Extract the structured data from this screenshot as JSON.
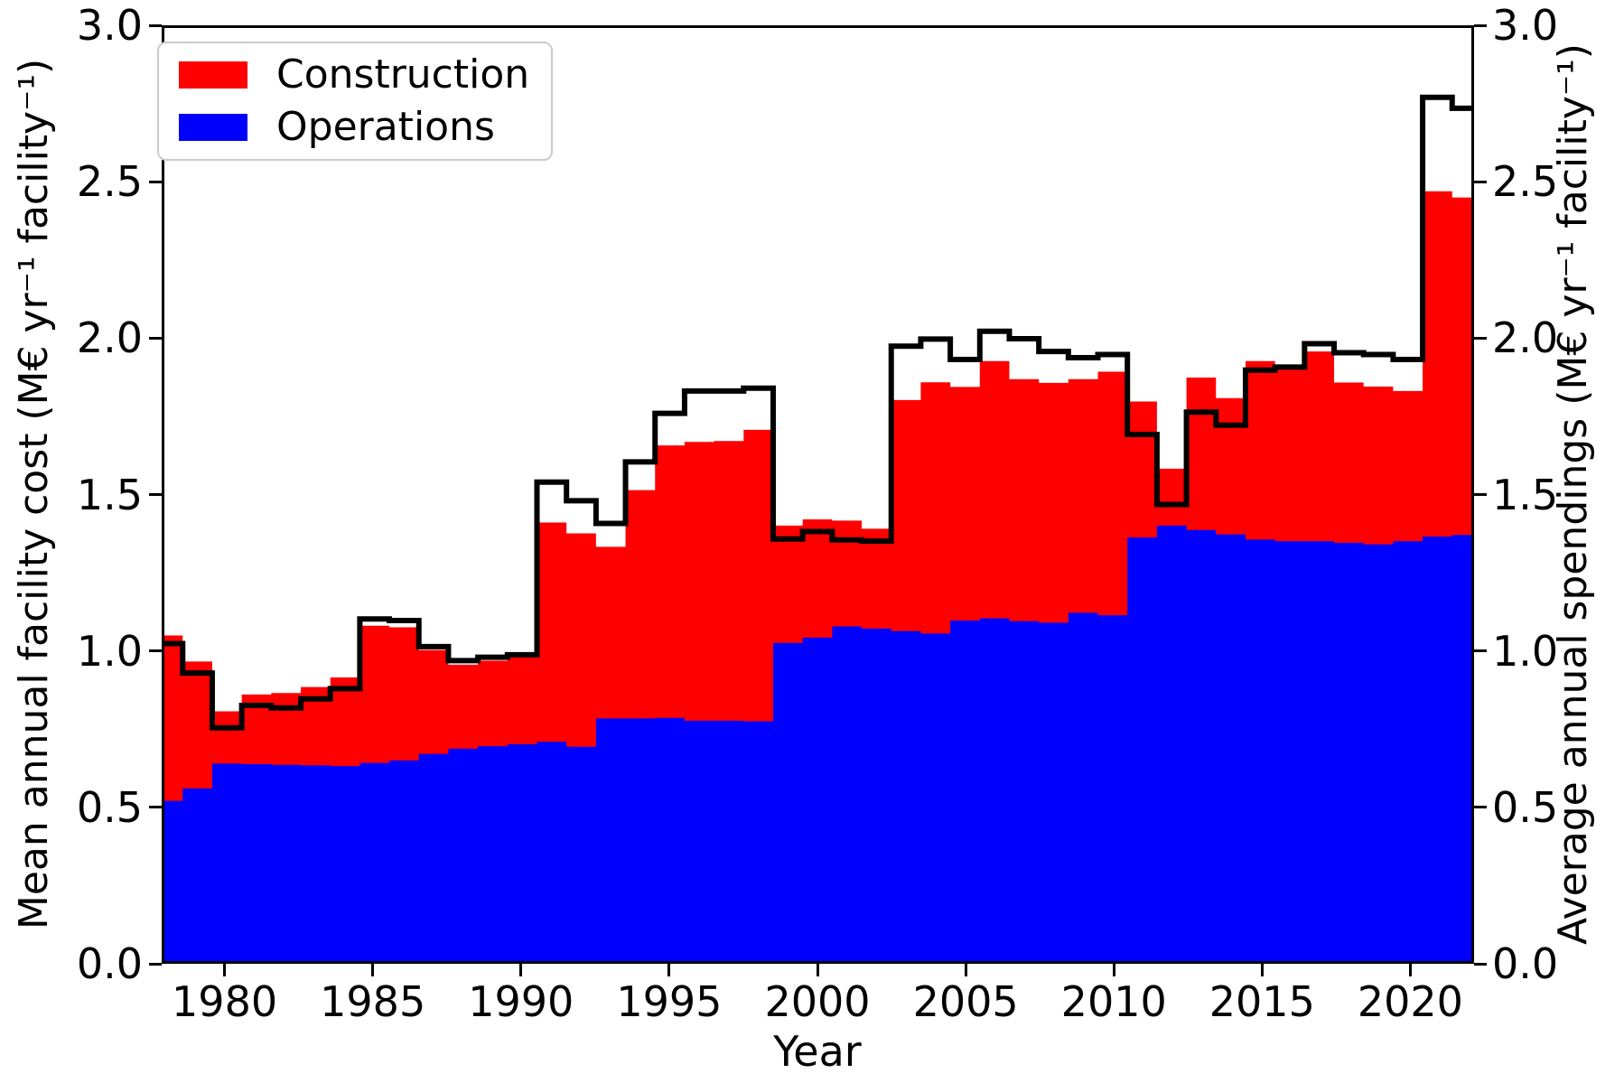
{
  "figure": {
    "background": "#ffffff",
    "legend": {
      "items": [
        {
          "label": "Construction",
          "color": "#ff0000"
        },
        {
          "label": "Operations",
          "color": "#0000ff"
        }
      ]
    },
    "axes": {
      "left_label": "Mean annual facility cost (M€ yr⁻¹ facility⁻¹)",
      "right_label": "Average annual spendings (M€ yr⁻¹ facility⁻¹)",
      "x_label": "Year",
      "y_tick_labels": [
        "0.0",
        "0.5",
        "1.0",
        "1.5",
        "2.0",
        "2.5",
        "3.0"
      ],
      "x_tick_labels": [
        "1980",
        "1985",
        "1990",
        "1995",
        "2000",
        "2005",
        "2010",
        "2015",
        "2020"
      ]
    }
  },
  "chart_data": {
    "type": "area",
    "subtype": "stacked-step-area-with-step-line",
    "title": "",
    "xlabel": "Year",
    "ylabel_left": "Mean annual facility cost (M€ yr⁻¹ facility⁻¹)",
    "ylabel_right": "Average annual spendings (M€ yr⁻¹ facility⁻¹)",
    "xlim": [
      1977.88,
      2022.15
    ],
    "ylim": [
      0.0,
      3.0
    ],
    "x_ticks": [
      1980,
      1985,
      1990,
      1995,
      2000,
      2005,
      2010,
      2015,
      2020
    ],
    "y_ticks": [
      0.0,
      0.5,
      1.0,
      1.5,
      2.0,
      2.5,
      3.0
    ],
    "grid": false,
    "legend_position": "upper left",
    "bar_alignment": "center",
    "x": [
      1978,
      1979,
      1980,
      1981,
      1982,
      1983,
      1984,
      1985,
      1986,
      1987,
      1988,
      1989,
      1990,
      1991,
      1992,
      1993,
      1994,
      1995,
      1996,
      1997,
      1998,
      1999,
      2000,
      2001,
      2002,
      2003,
      2004,
      2005,
      2006,
      2007,
      2008,
      2009,
      2010,
      2011,
      2012,
      2013,
      2014,
      2015,
      2016,
      2017,
      2018,
      2019,
      2020,
      2021,
      2022
    ],
    "series": [
      {
        "name": "Operations",
        "role": "stacked-area-bottom",
        "color": "#0000ff",
        "values": [
          0.515,
          0.555,
          0.635,
          0.633,
          0.631,
          0.629,
          0.627,
          0.637,
          0.645,
          0.666,
          0.683,
          0.691,
          0.697,
          0.705,
          0.689,
          0.78,
          0.78,
          0.782,
          0.773,
          0.773,
          0.771,
          1.023,
          1.04,
          1.076,
          1.069,
          1.061,
          1.053,
          1.095,
          1.102,
          1.093,
          1.088,
          1.12,
          1.112,
          1.362,
          1.4,
          1.386,
          1.372,
          1.355,
          1.35,
          1.35,
          1.345,
          1.34,
          1.35,
          1.365,
          1.37
        ]
      },
      {
        "name": "Construction",
        "role": "stacked-area-top",
        "color": "#ff0000",
        "values": [
          0.532,
          0.408,
          0.168,
          0.224,
          0.231,
          0.252,
          0.285,
          0.441,
          0.428,
          0.334,
          0.27,
          0.275,
          0.285,
          0.705,
          0.686,
          0.552,
          0.734,
          0.876,
          0.896,
          0.899,
          0.937,
          0.377,
          0.38,
          0.34,
          0.321,
          0.743,
          0.808,
          0.751,
          0.827,
          0.778,
          0.771,
          0.751,
          0.783,
          0.437,
          0.183,
          0.49,
          0.438,
          0.574,
          0.552,
          0.61,
          0.515,
          0.507,
          0.483,
          1.11,
          1.085
        ]
      },
      {
        "name": "Average annual spendings",
        "role": "step-line",
        "color": "#000000",
        "values": [
          1.021,
          0.926,
          0.75,
          0.822,
          0.814,
          0.843,
          0.876,
          1.1,
          1.095,
          1.011,
          0.966,
          0.977,
          0.985,
          1.54,
          1.48,
          1.407,
          1.605,
          1.761,
          1.833,
          1.833,
          1.842,
          1.357,
          1.381,
          1.354,
          1.35,
          1.977,
          2.0,
          1.934,
          2.025,
          2.001,
          1.96,
          1.94,
          1.95,
          1.693,
          1.468,
          1.765,
          1.723,
          1.9,
          1.91,
          1.985,
          1.956,
          1.95,
          1.934,
          2.777,
          2.742
        ]
      }
    ]
  }
}
